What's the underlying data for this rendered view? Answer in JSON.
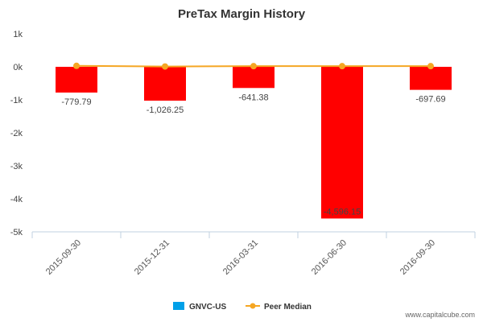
{
  "chart_data": {
    "type": "bar",
    "title": "PreTax Margin History",
    "categories": [
      "2015-09-30",
      "2015-12-31",
      "2016-03-31",
      "2016-06-30",
      "2016-09-30"
    ],
    "series": [
      {
        "name": "GNVC-US",
        "type": "bar",
        "values": [
          -779.79,
          -1026.25,
          -641.38,
          -4596.15,
          -697.69
        ],
        "labels": [
          "-779.79",
          "-1,026.25",
          "-641.38",
          "-4,596.15",
          "-697.69"
        ]
      },
      {
        "name": "Peer Median",
        "type": "line",
        "values": [
          30,
          10,
          20,
          20,
          20
        ]
      }
    ],
    "ylim": [
      -5000,
      1000
    ],
    "yticks": [
      1000,
      0,
      -1000,
      -2000,
      -3000,
      -4000,
      -5000
    ],
    "ytick_labels": [
      "1k",
      "0k",
      "-1k",
      "-2k",
      "-3k",
      "-4k",
      "-5k"
    ],
    "legend_position": "bottom-center",
    "grid": false
  },
  "colors": {
    "bar": "#ff0000",
    "legend_bar_swatch": "#00a0e8",
    "peer_line": "#f5a623",
    "axis": "#c0d0e0"
  },
  "watermark": "www.capitalcube.com"
}
